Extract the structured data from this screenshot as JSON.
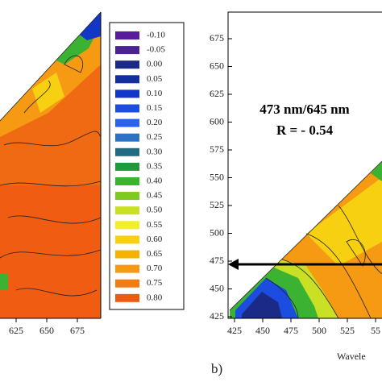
{
  "left_panel": {
    "xticks": [
      "625",
      "650",
      "675"
    ]
  },
  "legend": [
    {
      "label": "-0.10",
      "color": "#5b1c9c"
    },
    {
      "label": "-0.05",
      "color": "#4a2292"
    },
    {
      "label": "0.00",
      "color": "#1b2a86"
    },
    {
      "label": "0.05",
      "color": "#12309c"
    },
    {
      "label": "0.10",
      "color": "#1236c6"
    },
    {
      "label": "0.15",
      "color": "#1c4ce0"
    },
    {
      "label": "0.20",
      "color": "#2c62f0"
    },
    {
      "label": "0.25",
      "color": "#2b72c4"
    },
    {
      "label": "0.30",
      "color": "#206a82"
    },
    {
      "label": "0.35",
      "color": "#1c9a3c"
    },
    {
      "label": "0.40",
      "color": "#3cb232"
    },
    {
      "label": "0.45",
      "color": "#7cca22"
    },
    {
      "label": "0.50",
      "color": "#c9e024"
    },
    {
      "label": "0.55",
      "color": "#f2f022"
    },
    {
      "label": "0.60",
      "color": "#f8d012"
    },
    {
      "label": "0.65",
      "color": "#f6b202"
    },
    {
      "label": "0.70",
      "color": "#f59a12"
    },
    {
      "label": "0.75",
      "color": "#f27c12"
    },
    {
      "label": "0.80",
      "color": "#ee5a12"
    }
  ],
  "right_panel": {
    "yticks": [
      "675",
      "650",
      "625",
      "600",
      "575",
      "550",
      "525",
      "500",
      "475",
      "450",
      "425"
    ],
    "xticks": [
      "425",
      "450",
      "475",
      "500",
      "525",
      "55"
    ],
    "x_label": "Wavele",
    "annotation": [
      "473 nm/645 nm",
      "R = - 0.54"
    ],
    "panel_label": "b)"
  }
}
